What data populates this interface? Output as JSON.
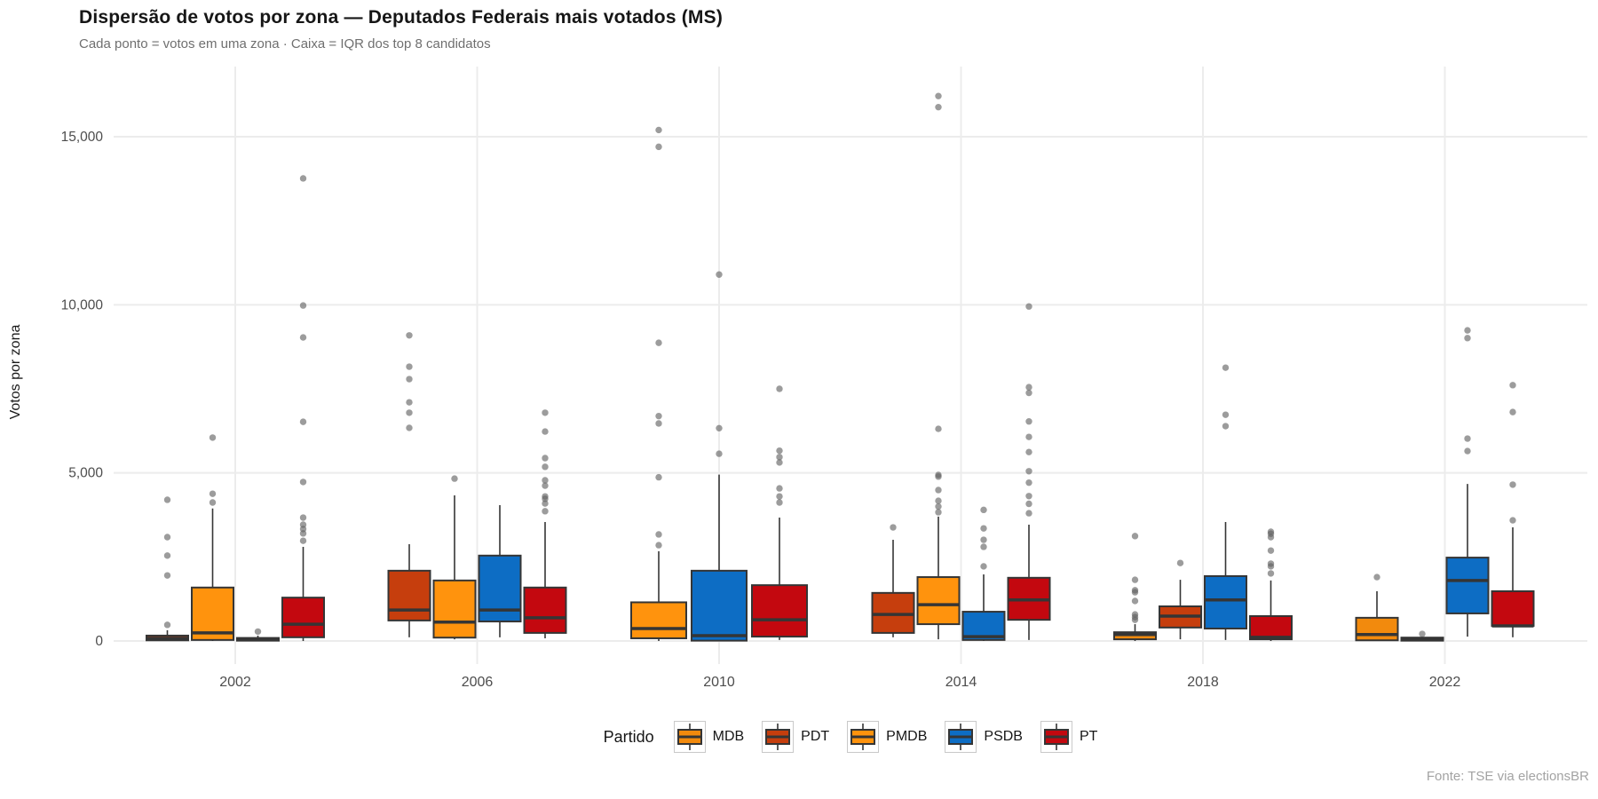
{
  "chart_data": {
    "type": "boxplot",
    "title": "Dispersão de votos por zona — Deputados Federais mais votados (MS)",
    "subtitle": "Cada ponto = votos em uma zona · Caixa = IQR dos top 8 candidatos",
    "ylabel": "Votos por zona",
    "source": "Fonte: TSE via electionsBR",
    "legend_title": "Partido",
    "legend_position": "bottom",
    "grid": "light gray major gridlines, white background",
    "ylim": [
      0,
      17000
    ],
    "y_ticks": [
      {
        "value": 0,
        "label": "0"
      },
      {
        "value": 5000,
        "label": "5,000"
      },
      {
        "value": 10000,
        "label": "10,000"
      },
      {
        "value": 15000,
        "label": "15,000"
      }
    ],
    "parties": [
      {
        "name": "MDB",
        "color": "#F28A0D"
      },
      {
        "name": "PDT",
        "color": "#C63E0D"
      },
      {
        "name": "PMDB",
        "color": "#FF930D"
      },
      {
        "name": "PSDB",
        "color": "#0D6DC4"
      },
      {
        "name": "PT",
        "color": "#C3080F"
      }
    ],
    "groups": [
      {
        "year": "2002",
        "boxes": [
          {
            "party": "PDT",
            "lo": 0,
            "q1": 20,
            "med": 80,
            "q3": 160,
            "hi": 320,
            "outliers": [
              4200,
              3090,
              2540,
              1950,
              480
            ]
          },
          {
            "party": "PMDB",
            "lo": 0,
            "q1": 30,
            "med": 240,
            "q3": 1590,
            "hi": 3940,
            "outliers": [
              6050,
              4380,
              4120
            ]
          },
          {
            "party": "PSDB",
            "lo": 0,
            "q1": 10,
            "med": 40,
            "q3": 90,
            "hi": 160,
            "outliers": [
              280
            ]
          },
          {
            "party": "PT",
            "lo": 0,
            "q1": 110,
            "med": 500,
            "q3": 1290,
            "hi": 2800,
            "outliers": [
              13760,
              9980,
              9030,
              6520,
              4730,
              3670,
              3460,
              3330,
              3200,
              2980
            ]
          }
        ]
      },
      {
        "year": "2006",
        "boxes": [
          {
            "party": "PDT",
            "lo": 110,
            "q1": 610,
            "med": 920,
            "q3": 2090,
            "hi": 2880,
            "outliers": [
              9090,
              8160,
              7790,
              7100,
              6790,
              6340
            ]
          },
          {
            "party": "PMDB",
            "lo": 50,
            "q1": 100,
            "med": 560,
            "q3": 1800,
            "hi": 4330,
            "outliers": [
              4830
            ]
          },
          {
            "party": "PSDB",
            "lo": 110,
            "q1": 580,
            "med": 920,
            "q3": 2540,
            "hi": 4040,
            "outliers": []
          },
          {
            "party": "PT",
            "lo": 80,
            "q1": 240,
            "med": 690,
            "q3": 1590,
            "hi": 3540,
            "outliers": [
              6790,
              6230,
              5440,
              5180,
              4780,
              4620,
              4300,
              4230,
              4090,
              3860
            ]
          }
        ]
      },
      {
        "year": "2010",
        "boxes": [
          {
            "party": "PMDB",
            "lo": 0,
            "q1": 80,
            "med": 370,
            "q3": 1150,
            "hi": 2670,
            "outliers": [
              15200,
              14700,
              8870,
              6690,
              6470,
              4870,
              3170,
              2850
            ]
          },
          {
            "party": "PSDB",
            "lo": 0,
            "q1": 10,
            "med": 160,
            "q3": 2090,
            "hi": 4950,
            "outliers": [
              10900,
              6330,
              5570
            ]
          },
          {
            "party": "PT",
            "lo": 30,
            "q1": 130,
            "med": 630,
            "q3": 1660,
            "hi": 3670,
            "outliers": [
              7500,
              5660,
              5470,
              5310,
              4540,
              4300,
              4120
            ]
          }
        ]
      },
      {
        "year": "2014",
        "boxes": [
          {
            "party": "PDT",
            "lo": 110,
            "q1": 240,
            "med": 790,
            "q3": 1430,
            "hi": 3010,
            "outliers": [
              3380
            ]
          },
          {
            "party": "PMDB",
            "lo": 50,
            "q1": 500,
            "med": 1080,
            "q3": 1900,
            "hi": 3700,
            "outliers": [
              16210,
              15880,
              6310,
              4940,
              4890,
              4490,
              4170,
              4000,
              3830
            ]
          },
          {
            "party": "PSDB",
            "lo": 0,
            "q1": 30,
            "med": 130,
            "q3": 870,
            "hi": 1980,
            "outliers": [
              3900,
              3350,
              3010,
              2800,
              2220
            ]
          },
          {
            "party": "PT",
            "lo": 30,
            "q1": 630,
            "med": 1220,
            "q3": 1880,
            "hi": 3460,
            "outliers": [
              9950,
              7550,
              7380,
              6530,
              6070,
              5620,
              5050,
              4710,
              4310,
              4080,
              3800
            ]
          }
        ]
      },
      {
        "year": "2018",
        "boxes": [
          {
            "party": "MDB",
            "lo": 0,
            "q1": 50,
            "med": 190,
            "q3": 260,
            "hi": 500,
            "outliers": [
              3120,
              1820,
              1510,
              1450,
              1190,
              790,
              710,
              630
            ]
          },
          {
            "party": "PDT",
            "lo": 50,
            "q1": 400,
            "med": 740,
            "q3": 1030,
            "hi": 1820,
            "outliers": [
              2320
            ]
          },
          {
            "party": "PSDB",
            "lo": 30,
            "q1": 370,
            "med": 1220,
            "q3": 1930,
            "hi": 3540,
            "outliers": [
              8130,
              6730,
              6390
            ]
          },
          {
            "party": "PT",
            "lo": 0,
            "q1": 50,
            "med": 110,
            "q3": 740,
            "hi": 1800,
            "outliers": [
              3250,
              3190,
              3090,
              2690,
              2300,
              2220,
              2010
            ]
          }
        ]
      },
      {
        "year": "2022",
        "boxes": [
          {
            "party": "MDB",
            "lo": 0,
            "q1": 20,
            "med": 190,
            "q3": 690,
            "hi": 1480,
            "outliers": [
              1900
            ]
          },
          {
            "party": "PDT",
            "lo": 0,
            "q1": 10,
            "med": 50,
            "q3": 100,
            "hi": 130,
            "outliers": [
              210
            ]
          },
          {
            "party": "PSDB",
            "lo": 130,
            "q1": 820,
            "med": 1800,
            "q3": 2480,
            "hi": 4670,
            "outliers": [
              9240,
              9010,
              6020,
              5650
            ]
          },
          {
            "party": "PT",
            "lo": 110,
            "q1": 450,
            "med": 450,
            "q3": 1480,
            "hi": 3380,
            "outliers": [
              7610,
              6810,
              4650,
              3590
            ]
          }
        ]
      }
    ]
  }
}
